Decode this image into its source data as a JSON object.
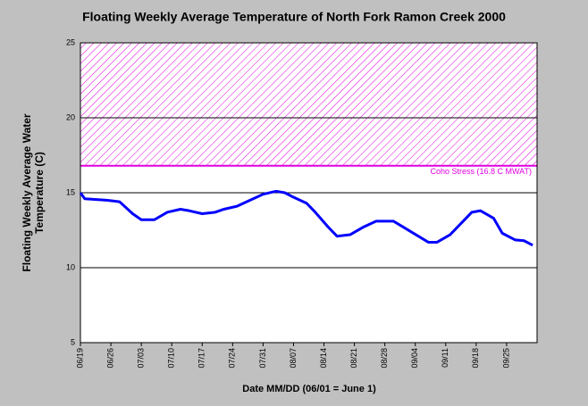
{
  "chart_data": {
    "type": "line",
    "title": "Floating Weekly Average Temperature of North Fork Ramon Creek 2000",
    "x_label": "Date MM/DD (06/01 = June 1)",
    "y_label": [
      "Floating Weekly Average Water",
      "Temperature (C)"
    ],
    "threshold": {
      "value": 16.8,
      "label": "Coho Stress (16.8 C MWAT)",
      "color": "#e000e0"
    },
    "x": [
      0,
      1,
      6,
      9,
      12,
      14,
      17,
      20,
      23,
      25,
      28,
      31,
      33,
      36,
      39,
      42,
      45,
      47,
      49,
      52,
      54,
      57,
      59,
      62,
      65,
      68,
      72,
      76,
      80,
      82,
      85,
      88,
      90,
      92,
      95,
      97,
      100,
      102,
      104
    ],
    "series": [
      {
        "name": "Temperature",
        "color": "#0000ff",
        "values": [
          15.0,
          14.6,
          14.5,
          14.4,
          13.6,
          13.2,
          13.2,
          13.7,
          13.9,
          13.8,
          13.6,
          13.7,
          13.9,
          14.1,
          14.5,
          14.9,
          15.1,
          15.0,
          14.7,
          14.3,
          13.7,
          12.7,
          12.1,
          12.2,
          12.7,
          13.1,
          13.1,
          12.4,
          11.7,
          11.7,
          12.2,
          13.1,
          13.7,
          13.8,
          13.3,
          12.3,
          11.85,
          11.8,
          11.5
        ]
      }
    ],
    "xlim": [
      0,
      105
    ],
    "xticks": [
      {
        "value": 0,
        "label": "06/19"
      },
      {
        "value": 7,
        "label": "06/26"
      },
      {
        "value": 14,
        "label": "07/03"
      },
      {
        "value": 21,
        "label": "07/10"
      },
      {
        "value": 28,
        "label": "07/17"
      },
      {
        "value": 35,
        "label": "07/24"
      },
      {
        "value": 42,
        "label": "07/31"
      },
      {
        "value": 49,
        "label": "08/07"
      },
      {
        "value": 56,
        "label": "08/14"
      },
      {
        "value": 63,
        "label": "08/21"
      },
      {
        "value": 70,
        "label": "08/28"
      },
      {
        "value": 77,
        "label": "09/04"
      },
      {
        "value": 84,
        "label": "09/11"
      },
      {
        "value": 91,
        "label": "09/18"
      },
      {
        "value": 98,
        "label": "09/25"
      }
    ],
    "ylim": [
      5,
      25
    ],
    "yticks": [
      5,
      10,
      15,
      20,
      25
    ],
    "grid": true
  }
}
